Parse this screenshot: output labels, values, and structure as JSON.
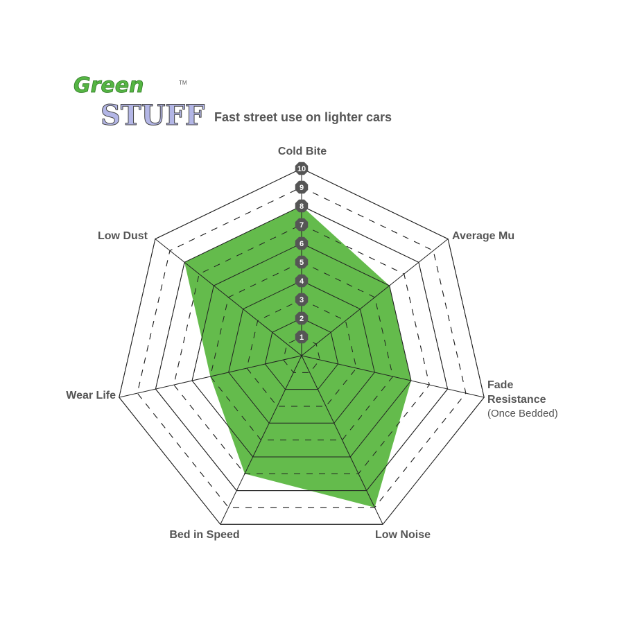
{
  "logo": {
    "line1": "Green",
    "line2": "STUFF",
    "mark": "TM"
  },
  "chart_data": {
    "type": "radar",
    "title": "Fast street use on lighter cars",
    "axes": [
      "Cold Bite",
      "Average Mu",
      "Fade Resistance",
      "Low Noise",
      "Bed in Speed",
      "Wear Life",
      "Low Dust"
    ],
    "axis_sublabels": {
      "Fade Resistance": "(Once Bedded)"
    },
    "values": [
      8,
      6,
      6,
      9,
      7,
      5,
      8
    ],
    "range": [
      0,
      10
    ],
    "ticks": [
      1,
      2,
      3,
      4,
      5,
      6,
      7,
      8,
      9,
      10
    ],
    "fill_color": "#5fb946",
    "grid_color": "#222222",
    "tick_badge_color": "#555555"
  }
}
